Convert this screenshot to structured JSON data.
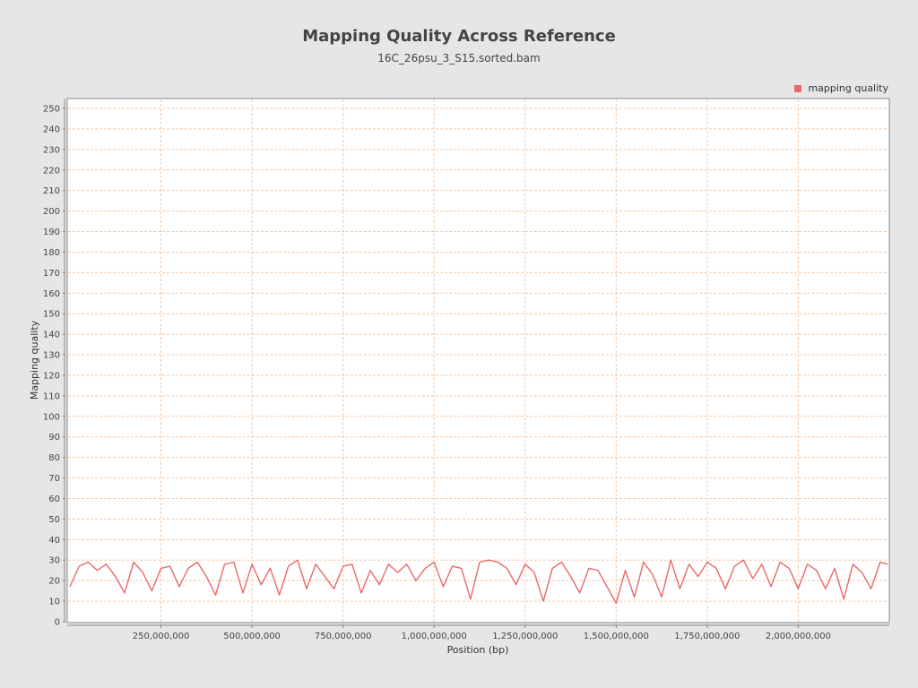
{
  "chart_data": {
    "type": "line",
    "title": "Mapping Quality Across Reference",
    "subtitle": "16C_26psu_3_S15.sorted.bam",
    "xlabel": "Position (bp)",
    "ylabel": "Mapping quality",
    "xlim": [
      0,
      2250000000
    ],
    "ylim": [
      0,
      255
    ],
    "xticks": [
      250000000,
      500000000,
      750000000,
      1000000000,
      1250000000,
      1500000000,
      1750000000,
      2000000000
    ],
    "xtick_labels": [
      "250,000,000",
      "500,000,000",
      "750,000,000",
      "1,000,000,000",
      "1,250,000,000",
      "1,500,000,000",
      "1,750,000,000",
      "2,000,000,000"
    ],
    "yticks": [
      0,
      10,
      20,
      30,
      40,
      50,
      60,
      70,
      80,
      90,
      100,
      110,
      120,
      130,
      140,
      150,
      160,
      170,
      180,
      190,
      200,
      210,
      220,
      230,
      240,
      250
    ],
    "grid": true,
    "legend_placement": "top-right",
    "series": [
      {
        "name": "mapping quality",
        "color": "#e8696b",
        "x": [
          0,
          25000000,
          50000000,
          75000000,
          100000000,
          125000000,
          150000000,
          175000000,
          200000000,
          225000000,
          250000000,
          275000000,
          300000000,
          325000000,
          350000000,
          375000000,
          400000000,
          425000000,
          450000000,
          475000000,
          500000000,
          525000000,
          550000000,
          575000000,
          600000000,
          625000000,
          650000000,
          675000000,
          700000000,
          725000000,
          750000000,
          775000000,
          800000000,
          825000000,
          850000000,
          875000000,
          900000000,
          925000000,
          950000000,
          975000000,
          1000000000,
          1025000000,
          1050000000,
          1075000000,
          1100000000,
          1125000000,
          1150000000,
          1175000000,
          1200000000,
          1225000000,
          1250000000,
          1275000000,
          1300000000,
          1325000000,
          1350000000,
          1375000000,
          1400000000,
          1425000000,
          1450000000,
          1475000000,
          1500000000,
          1525000000,
          1550000000,
          1575000000,
          1600000000,
          1625000000,
          1650000000,
          1675000000,
          1700000000,
          1725000000,
          1750000000,
          1775000000,
          1800000000,
          1825000000,
          1850000000,
          1875000000,
          1900000000,
          1925000000,
          1950000000,
          1975000000,
          2000000000,
          2025000000,
          2050000000,
          2075000000,
          2100000000,
          2125000000,
          2150000000,
          2175000000,
          2200000000,
          2225000000,
          2245000000
        ],
        "y": [
          17,
          27,
          29,
          25,
          28,
          22,
          14,
          29,
          24,
          15,
          26,
          27,
          17,
          26,
          29,
          22,
          13,
          28,
          29,
          14,
          28,
          18,
          26,
          13,
          27,
          30,
          16,
          28,
          22,
          16,
          27,
          28,
          14,
          25,
          18,
          28,
          24,
          28,
          20,
          26,
          29,
          17,
          27,
          26,
          11,
          29,
          30,
          29,
          26,
          18,
          28,
          24,
          10,
          26,
          29,
          22,
          14,
          26,
          25,
          17,
          9,
          25,
          12,
          29,
          23,
          12,
          30,
          16,
          28,
          22,
          29,
          26,
          16,
          27,
          30,
          21,
          28,
          17,
          29,
          26,
          16,
          28,
          25,
          16,
          26,
          11,
          28,
          24,
          16,
          29,
          28
        ]
      }
    ]
  }
}
